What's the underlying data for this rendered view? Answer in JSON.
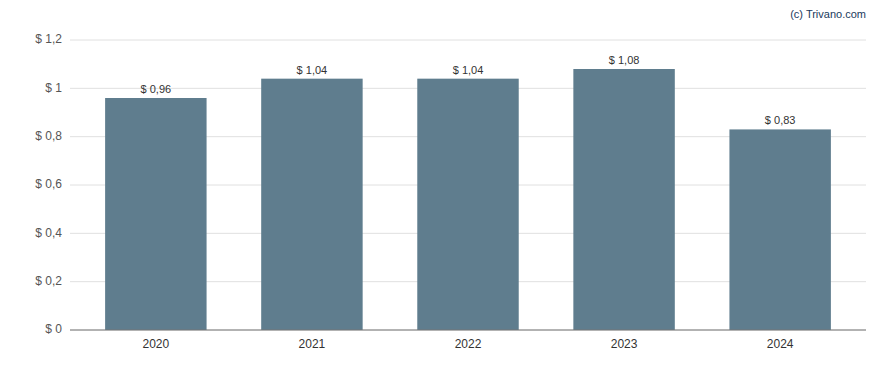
{
  "chart_data": {
    "type": "bar",
    "categories": [
      "2020",
      "2021",
      "2022",
      "2023",
      "2024"
    ],
    "values": [
      0.96,
      1.04,
      1.04,
      1.08,
      0.83
    ],
    "value_labels": [
      "$ 0,96",
      "$ 1,04",
      "$ 1,04",
      "$ 1,08",
      "$ 0,83"
    ],
    "data_labels": true,
    "color": "#5f7d8e",
    "ylim": [
      0,
      1.2
    ],
    "yticks": [
      {
        "value": 0,
        "label": "$ 0"
      },
      {
        "value": 0.2,
        "label": "$ 0,2"
      },
      {
        "value": 0.4,
        "label": "$ 0,4"
      },
      {
        "value": 0.6,
        "label": "$ 0,6"
      },
      {
        "value": 0.8,
        "label": "$ 0,8"
      },
      {
        "value": 1.0,
        "label": "$ 1"
      },
      {
        "value": 1.2,
        "label": "$ 1,2"
      }
    ],
    "grid": true,
    "annotations": [
      "(c) Trivano.com"
    ]
  }
}
